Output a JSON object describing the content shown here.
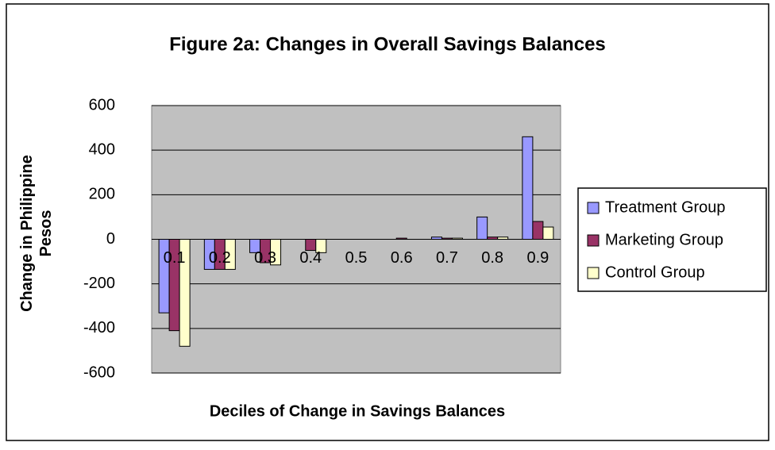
{
  "chart_data": {
    "type": "bar",
    "title": "Figure 2a: Changes in Overall Savings Balances",
    "x_label": "Deciles of Change in Savings Balances",
    "y_label": "Change in Philippine Pesos",
    "categories": [
      "0.1",
      "0.2",
      "0.3",
      "0.4",
      "0.5",
      "0.6",
      "0.7",
      "0.8",
      "0.9"
    ],
    "series": [
      {
        "name": "Treatment Group",
        "color": "#9999ff",
        "values": [
          -330,
          -135,
          -60,
          0,
          0,
          0,
          10,
          100,
          460
        ]
      },
      {
        "name": "Marketing Group",
        "color": "#993366",
        "values": [
          -410,
          -135,
          -105,
          -50,
          0,
          5,
          5,
          10,
          80
        ]
      },
      {
        "name": "Control Group",
        "color": "#ffffcc",
        "values": [
          -480,
          -135,
          -115,
          -60,
          0,
          0,
          5,
          10,
          55
        ]
      }
    ],
    "ylim": [
      -600,
      600
    ],
    "yticks": [
      -600,
      -400,
      -200,
      0,
      200,
      400,
      600
    ],
    "grid": true,
    "legend": "right"
  }
}
